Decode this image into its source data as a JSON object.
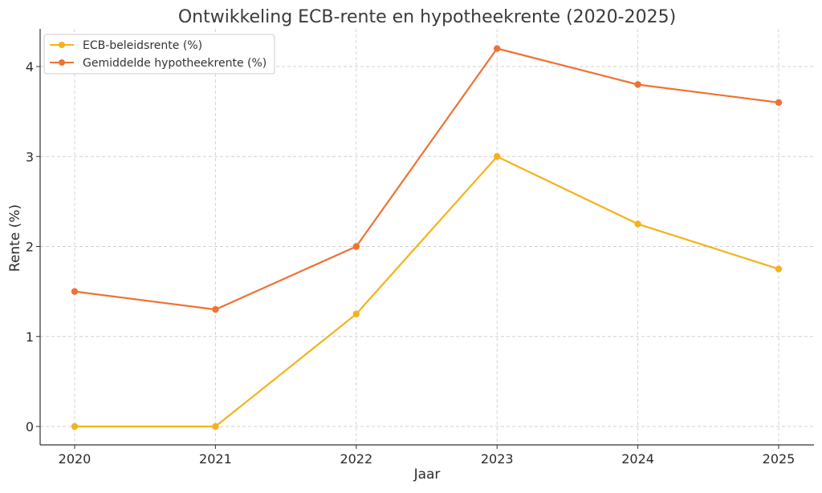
{
  "chart_data": {
    "type": "line",
    "title": "Ontwikkeling ECB-rente en hypotheekrente (2020-2025)",
    "xlabel": "Jaar",
    "ylabel": "Rente (%)",
    "x": [
      "2020",
      "2021",
      "2022",
      "2023",
      "2024",
      "2025"
    ],
    "ylim": [
      -0.2,
      4.4
    ],
    "yticks": [
      "0",
      "1",
      "2",
      "3",
      "4"
    ],
    "grid": true,
    "legend_position": "top-left",
    "series": [
      {
        "name": "ECB-beleidsrente (%)",
        "color": "#f4b21c",
        "values": [
          0,
          0,
          1.25,
          3.0,
          2.25,
          1.75
        ]
      },
      {
        "name": "Gemiddelde hypotheekrente (%)",
        "color": "#ee7233",
        "values": [
          1.5,
          1.3,
          2.0,
          4.2,
          3.8,
          3.6
        ]
      }
    ]
  }
}
